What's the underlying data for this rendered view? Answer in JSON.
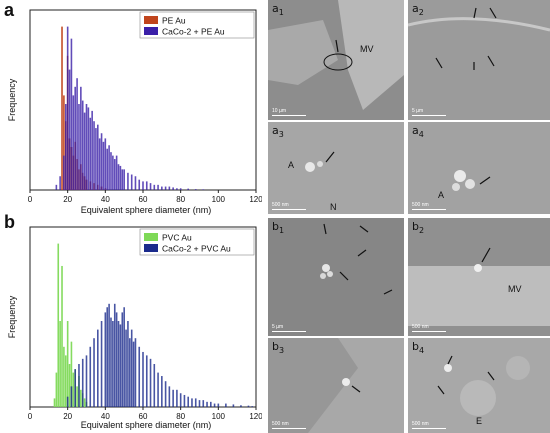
{
  "panels": {
    "a": "a",
    "b": "b"
  },
  "chart_data": [
    {
      "type": "bar",
      "xlabel": "Equivalent sphere diameter (nm)",
      "ylabel": "Frequency",
      "xlim": [
        0,
        120
      ],
      "x_ticks": [
        "0",
        "20",
        "40",
        "60",
        "80",
        "100",
        "120"
      ],
      "legend_position": "top-right",
      "series": [
        {
          "name": "PE Au",
          "color": "#c0441c",
          "x": [
            17,
            18,
            19,
            20,
            21,
            22,
            23,
            24,
            25,
            26,
            27,
            28,
            29,
            30,
            32,
            34,
            36,
            38,
            40
          ],
          "values": [
            0.95,
            0.55,
            0.4,
            0.78,
            0.3,
            0.25,
            0.2,
            0.28,
            0.18,
            0.12,
            0.15,
            0.1,
            0.08,
            0.06,
            0.05,
            0.04,
            0.03,
            0.02,
            0.01
          ]
        },
        {
          "name": "CaCo-2 + PE Au",
          "color": "#3a1fa8",
          "x": [
            14,
            16,
            18,
            19,
            20,
            21,
            22,
            23,
            24,
            25,
            26,
            27,
            28,
            29,
            30,
            31,
            32,
            33,
            34,
            35,
            36,
            37,
            38,
            39,
            40,
            41,
            42,
            43,
            44,
            45,
            46,
            47,
            48,
            49,
            50,
            52,
            54,
            56,
            58,
            60,
            62,
            64,
            66,
            68,
            70,
            72,
            74,
            76,
            78,
            80,
            84,
            88,
            92
          ],
          "values": [
            0.03,
            0.08,
            0.2,
            0.5,
            0.95,
            0.7,
            0.88,
            0.55,
            0.6,
            0.65,
            0.5,
            0.6,
            0.52,
            0.45,
            0.5,
            0.48,
            0.42,
            0.46,
            0.4,
            0.36,
            0.38,
            0.3,
            0.33,
            0.28,
            0.3,
            0.24,
            0.26,
            0.22,
            0.2,
            0.18,
            0.2,
            0.15,
            0.14,
            0.12,
            0.12,
            0.1,
            0.09,
            0.08,
            0.06,
            0.05,
            0.05,
            0.04,
            0.03,
            0.03,
            0.02,
            0.02,
            0.02,
            0.015,
            0.01,
            0.01,
            0.008,
            0.005,
            0.004
          ]
        }
      ]
    },
    {
      "type": "bar",
      "xlabel": "Equivalent sphere diameter (nm)",
      "ylabel": "Frequency",
      "xlim": [
        0,
        120
      ],
      "x_ticks": [
        "0",
        "20",
        "40",
        "60",
        "80",
        "100",
        "120"
      ],
      "legend_position": "top-right",
      "series": [
        {
          "name": "PVC Au",
          "color": "#7ed957",
          "x": [
            13,
            14,
            15,
            16,
            17,
            18,
            19,
            20,
            21,
            22,
            23,
            24,
            25,
            26,
            27,
            28,
            29,
            30
          ],
          "values": [
            0.05,
            0.2,
            0.95,
            0.5,
            0.82,
            0.35,
            0.3,
            0.5,
            0.25,
            0.38,
            0.2,
            0.22,
            0.12,
            0.18,
            0.1,
            0.08,
            0.05,
            0.03
          ]
        },
        {
          "name": "CaCo-2 + PVC Au",
          "color": "#1a2a8c",
          "x": [
            20,
            22,
            24,
            26,
            28,
            30,
            32,
            34,
            36,
            38,
            40,
            41,
            42,
            43,
            44,
            45,
            46,
            47,
            48,
            49,
            50,
            51,
            52,
            53,
            54,
            55,
            56,
            58,
            60,
            62,
            64,
            66,
            68,
            70,
            72,
            74,
            76,
            78,
            80,
            82,
            84,
            86,
            88,
            90,
            92,
            94,
            96,
            98,
            100,
            104,
            108,
            112,
            116,
            118
          ],
          "values": [
            0.06,
            0.12,
            0.22,
            0.25,
            0.28,
            0.3,
            0.35,
            0.4,
            0.45,
            0.5,
            0.55,
            0.58,
            0.6,
            0.52,
            0.5,
            0.6,
            0.55,
            0.5,
            0.48,
            0.55,
            0.58,
            0.45,
            0.5,
            0.4,
            0.45,
            0.38,
            0.4,
            0.35,
            0.32,
            0.3,
            0.28,
            0.25,
            0.2,
            0.18,
            0.15,
            0.12,
            0.1,
            0.1,
            0.08,
            0.07,
            0.06,
            0.05,
            0.05,
            0.04,
            0.04,
            0.03,
            0.03,
            0.02,
            0.02,
            0.02,
            0.015,
            0.01,
            0.008,
            0.005
          ]
        }
      ]
    }
  ],
  "micrographs": {
    "a1": {
      "letter": "a",
      "sub": "1",
      "scale": "10 µm",
      "feature": "MV"
    },
    "a2": {
      "letter": "a",
      "sub": "2",
      "scale": "5 µm"
    },
    "a3": {
      "letter": "a",
      "sub": "3",
      "scale": "500 nm",
      "feature": "A",
      "feature2": "N"
    },
    "a4": {
      "letter": "a",
      "sub": "4",
      "scale": "500 nm",
      "feature": "A"
    },
    "b1": {
      "letter": "b",
      "sub": "1",
      "scale": "5 µm"
    },
    "b2": {
      "letter": "b",
      "sub": "2",
      "scale": "500 nm",
      "feature": "MV"
    },
    "b3": {
      "letter": "b",
      "sub": "3",
      "scale": "500 nm"
    },
    "b4": {
      "letter": "b",
      "sub": "4",
      "scale": "500 nm",
      "feature": "E"
    }
  }
}
